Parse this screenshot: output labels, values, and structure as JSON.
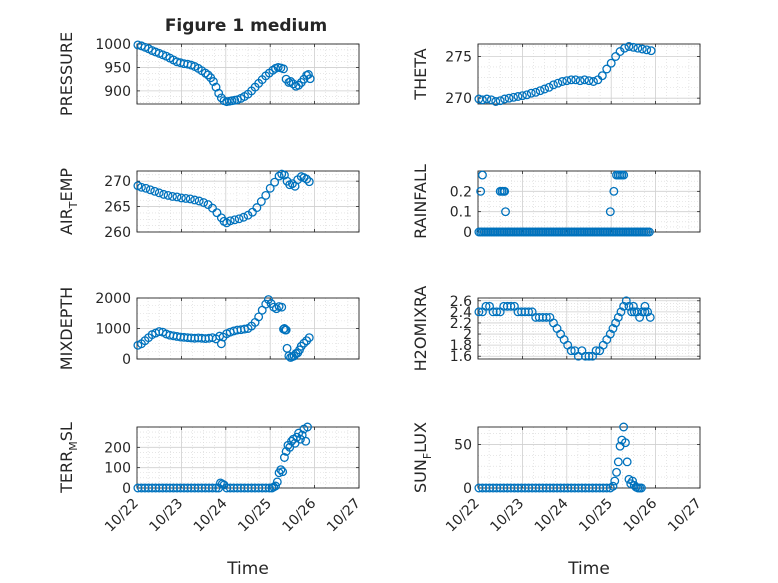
{
  "figure_title": "Figure 1 medium",
  "x_label": "Time",
  "x_tick_labels": [
    "10/22",
    "10/23",
    "10/24",
    "10/25",
    "10/26",
    "10/27"
  ],
  "marker_color": "#0072BD",
  "chart_data": [
    {
      "type": "scatter",
      "ylabel": "PRESSURE",
      "xlim": [
        0,
        5
      ],
      "ylim": [
        872,
        1000
      ],
      "yticks": [
        1000,
        950,
        900
      ],
      "grid": true,
      "x": [
        0.02,
        0.1,
        0.18,
        0.26,
        0.34,
        0.42,
        0.5,
        0.58,
        0.66,
        0.74,
        0.82,
        0.9,
        0.98,
        1.06,
        1.14,
        1.22,
        1.3,
        1.38,
        1.46,
        1.54,
        1.6,
        1.66,
        1.72,
        1.78,
        1.84,
        1.9,
        1.96,
        2.02,
        2.08,
        2.14,
        2.2,
        2.26,
        2.34,
        2.42,
        2.5,
        2.58,
        2.66,
        2.74,
        2.82,
        2.9,
        2.98,
        3.06,
        3.12,
        3.18,
        3.24,
        3.3,
        3.36,
        3.42,
        3.46,
        3.52,
        3.58,
        3.64,
        3.7,
        3.76,
        3.82,
        3.86,
        3.9
      ],
      "y": [
        998,
        996,
        993,
        990,
        986,
        983,
        980,
        977,
        974,
        970,
        966,
        962,
        960,
        958,
        957,
        955,
        952,
        948,
        943,
        938,
        934,
        928,
        920,
        908,
        895,
        885,
        879,
        877,
        878,
        879,
        880,
        881,
        884,
        888,
        893,
        900,
        908,
        916,
        924,
        932,
        938,
        944,
        948,
        950,
        949,
        947,
        925,
        918,
        920,
        915,
        910,
        912,
        918,
        925,
        933,
        935,
        926
      ],
      "series_name": "PRESSURE"
    },
    {
      "type": "scatter",
      "ylabel": "THETA",
      "xlim": [
        0,
        5
      ],
      "ylim": [
        269.3,
        276.5
      ],
      "yticks": [
        275,
        270
      ],
      "grid": true,
      "x": [
        0.02,
        0.1,
        0.2,
        0.3,
        0.4,
        0.5,
        0.6,
        0.7,
        0.8,
        0.9,
        1.0,
        1.1,
        1.2,
        1.3,
        1.4,
        1.5,
        1.6,
        1.7,
        1.8,
        1.9,
        2.0,
        2.1,
        2.2,
        2.3,
        2.4,
        2.5,
        2.6,
        2.7,
        2.8,
        2.9,
        3.0,
        3.1,
        3.2,
        3.3,
        3.4,
        3.5,
        3.6,
        3.7,
        3.8,
        3.9
      ],
      "y": [
        269.9,
        269.8,
        269.9,
        269.8,
        269.6,
        269.7,
        269.9,
        270.0,
        270.1,
        270.2,
        270.3,
        270.4,
        270.6,
        270.7,
        270.9,
        271.1,
        271.3,
        271.6,
        271.8,
        272.0,
        272.1,
        272.2,
        272.2,
        272.1,
        272.2,
        272.1,
        272.0,
        272.2,
        272.7,
        273.5,
        274.2,
        275.0,
        275.6,
        276.0,
        276.2,
        276.1,
        276.0,
        275.9,
        275.8,
        275.7
      ],
      "series_name": "THETA"
    },
    {
      "type": "scatter",
      "ylabel": "AIR_TEMP",
      "xlim": [
        0,
        5
      ],
      "ylim": [
        260,
        272
      ],
      "yticks": [
        270,
        265,
        260
      ],
      "grid": true,
      "x": [
        0.02,
        0.1,
        0.2,
        0.3,
        0.4,
        0.5,
        0.6,
        0.7,
        0.8,
        0.9,
        1.0,
        1.1,
        1.2,
        1.3,
        1.4,
        1.5,
        1.6,
        1.7,
        1.8,
        1.9,
        1.96,
        2.02,
        2.1,
        2.2,
        2.3,
        2.4,
        2.5,
        2.6,
        2.7,
        2.8,
        2.9,
        3.0,
        3.1,
        3.2,
        3.26,
        3.32,
        3.38,
        3.44,
        3.5,
        3.56,
        3.62,
        3.7,
        3.76,
        3.82,
        3.88
      ],
      "y": [
        269.1,
        268.8,
        268.6,
        268.3,
        268.0,
        267.7,
        267.4,
        267.2,
        267.0,
        266.9,
        266.7,
        266.6,
        266.5,
        266.3,
        266.1,
        265.8,
        265.4,
        264.7,
        263.8,
        262.8,
        262.1,
        261.8,
        262.2,
        262.4,
        262.6,
        262.9,
        263.3,
        263.9,
        264.8,
        266.0,
        267.2,
        268.6,
        269.8,
        271.0,
        271.4,
        271.2,
        270.0,
        269.3,
        269.5,
        269.0,
        270.3,
        270.9,
        270.7,
        270.4,
        269.9
      ],
      "series_name": "AIR_TEMP"
    },
    {
      "type": "scatter",
      "ylabel": "RAINFALL",
      "xlim": [
        0,
        5
      ],
      "ylim": [
        0,
        0.3
      ],
      "yticks": [
        0.2,
        0.1,
        0
      ],
      "grid": true,
      "x": [
        0.02,
        0.06,
        0.1,
        0.14,
        0.18,
        0.22,
        0.26,
        0.3,
        0.34,
        0.38,
        0.42,
        0.46,
        0.5,
        0.54,
        0.58,
        0.62,
        0.66,
        0.7,
        0.74,
        0.78,
        0.82,
        0.86,
        0.9,
        0.94,
        0.98,
        1.02,
        1.06,
        1.1,
        1.14,
        1.18,
        1.22,
        1.26,
        1.3,
        1.34,
        1.38,
        1.42,
        1.46,
        1.5,
        1.54,
        1.58,
        1.62,
        1.66,
        1.7,
        1.74,
        1.78,
        1.82,
        1.86,
        1.9,
        1.94,
        1.98,
        2.02,
        2.06,
        2.1,
        2.14,
        2.18,
        2.22,
        2.26,
        2.3,
        2.34,
        2.38,
        2.42,
        2.46,
        2.5,
        2.54,
        2.58,
        2.62,
        2.66,
        2.7,
        2.74,
        2.78,
        2.82,
        2.86,
        2.9,
        2.94,
        2.98,
        3.02,
        3.06,
        3.1,
        3.14,
        3.18,
        3.22,
        3.26,
        3.3,
        3.34,
        3.38,
        3.42,
        3.46,
        3.5,
        3.54,
        3.58,
        3.62,
        3.66,
        3.7,
        3.74,
        3.78,
        3.82,
        3.86,
        0.06,
        0.1,
        0.5,
        0.54,
        0.58,
        0.6,
        0.62,
        2.98,
        3.06,
        3.12,
        3.16,
        3.2,
        3.24,
        3.28
      ],
      "y": [
        0,
        0,
        0,
        0,
        0,
        0,
        0,
        0,
        0,
        0,
        0,
        0,
        0,
        0,
        0,
        0,
        0,
        0,
        0,
        0,
        0,
        0,
        0,
        0,
        0,
        0,
        0,
        0,
        0,
        0,
        0,
        0,
        0,
        0,
        0,
        0,
        0,
        0,
        0,
        0,
        0,
        0,
        0,
        0,
        0,
        0,
        0,
        0,
        0,
        0,
        0,
        0,
        0,
        0,
        0,
        0,
        0,
        0,
        0,
        0,
        0,
        0,
        0,
        0,
        0,
        0,
        0,
        0,
        0,
        0,
        0,
        0,
        0,
        0,
        0,
        0,
        0,
        0,
        0,
        0,
        0,
        0,
        0,
        0,
        0,
        0,
        0,
        0,
        0,
        0,
        0,
        0,
        0,
        0,
        0,
        0,
        0,
        0.2,
        0.28,
        0.2,
        0.2,
        0.2,
        0.2,
        0.1,
        0.1,
        0.2,
        0.28,
        0.28,
        0.28,
        0.28,
        0.28
      ],
      "series_name": "RAINFALL"
    },
    {
      "type": "scatter",
      "ylabel": "MIXDEPTH",
      "xlim": [
        0,
        5
      ],
      "ylim": [
        0,
        2000
      ],
      "yticks": [
        2000,
        1000,
        0
      ],
      "grid": true,
      "x": [
        0.02,
        0.1,
        0.18,
        0.26,
        0.34,
        0.42,
        0.5,
        0.58,
        0.66,
        0.74,
        0.82,
        0.9,
        0.98,
        1.06,
        1.14,
        1.22,
        1.3,
        1.38,
        1.46,
        1.54,
        1.62,
        1.7,
        1.78,
        1.86,
        1.9,
        1.94,
        2.02,
        2.1,
        2.18,
        2.26,
        2.34,
        2.42,
        2.5,
        2.58,
        2.66,
        2.74,
        2.82,
        2.9,
        2.96,
        3.02,
        3.08,
        3.14,
        3.2,
        3.26,
        3.3,
        3.34,
        3.38,
        3.42,
        3.46,
        3.5,
        3.54,
        3.58,
        3.62,
        3.66,
        3.7,
        3.76,
        3.82,
        3.88,
        3.32,
        3.36
      ],
      "y": [
        450,
        500,
        600,
        700,
        800,
        850,
        900,
        880,
        820,
        780,
        760,
        740,
        720,
        710,
        700,
        690,
        680,
        690,
        680,
        670,
        680,
        700,
        660,
        750,
        500,
        720,
        830,
        880,
        920,
        950,
        960,
        980,
        1000,
        1080,
        1200,
        1380,
        1600,
        1800,
        1950,
        1820,
        1700,
        1650,
        1720,
        1700,
        980,
        950,
        350,
        100,
        50,
        80,
        100,
        180,
        200,
        300,
        420,
        520,
        600,
        700,
        1000,
        950
      ],
      "series_name": "MIXDEPTH"
    },
    {
      "type": "scatter",
      "ylabel": "H2OMIXRA",
      "xlim": [
        0,
        5
      ],
      "ylim": [
        1.55,
        2.65
      ],
      "yticks": [
        2.6,
        2.4,
        2.2,
        2,
        1.8,
        1.6
      ],
      "grid": true,
      "x": [
        0.02,
        0.1,
        0.18,
        0.26,
        0.34,
        0.42,
        0.5,
        0.58,
        0.66,
        0.74,
        0.82,
        0.9,
        0.98,
        1.06,
        1.14,
        1.22,
        1.3,
        1.38,
        1.46,
        1.54,
        1.62,
        1.7,
        1.78,
        1.86,
        1.94,
        2.02,
        2.1,
        2.18,
        2.26,
        2.34,
        2.42,
        2.5,
        2.58,
        2.66,
        2.74,
        2.82,
        2.9,
        2.98,
        3.04,
        3.1,
        3.16,
        3.22,
        3.28,
        3.34,
        3.4,
        3.46,
        3.52,
        3.58,
        3.64,
        3.7,
        3.76,
        3.82,
        3.88,
        3.5,
        3.76
      ],
      "y": [
        2.4,
        2.4,
        2.5,
        2.5,
        2.4,
        2.4,
        2.4,
        2.5,
        2.5,
        2.5,
        2.5,
        2.4,
        2.4,
        2.4,
        2.4,
        2.4,
        2.3,
        2.3,
        2.3,
        2.3,
        2.3,
        2.2,
        2.1,
        2.0,
        1.9,
        1.8,
        1.7,
        1.7,
        1.6,
        1.7,
        1.6,
        1.6,
        1.6,
        1.7,
        1.7,
        1.8,
        1.9,
        2.0,
        2.1,
        2.2,
        2.3,
        2.4,
        2.5,
        2.6,
        2.5,
        2.4,
        2.4,
        2.4,
        2.3,
        2.4,
        2.5,
        2.4,
        2.3,
        2.5,
        2.4
      ],
      "series_name": "H2OMIXRA"
    },
    {
      "type": "scatter",
      "ylabel": "TERR_MSL",
      "xlim": [
        0,
        5
      ],
      "ylim": [
        0,
        300
      ],
      "yticks": [
        200,
        100,
        0
      ],
      "grid": true,
      "x": [
        0.02,
        0.1,
        0.18,
        0.26,
        0.34,
        0.42,
        0.5,
        0.58,
        0.66,
        0.74,
        0.82,
        0.9,
        0.98,
        1.06,
        1.14,
        1.22,
        1.3,
        1.38,
        1.46,
        1.54,
        1.62,
        1.7,
        1.78,
        1.84,
        1.88,
        1.92,
        1.96,
        2.02,
        2.1,
        2.18,
        2.26,
        2.34,
        2.42,
        2.5,
        2.58,
        2.66,
        2.74,
        2.82,
        2.9,
        2.98,
        3.04,
        3.08,
        3.12,
        3.16,
        3.2,
        3.24,
        3.28,
        3.32,
        3.36,
        3.4,
        3.44,
        3.48,
        3.52,
        3.56,
        3.6,
        3.64,
        3.68,
        3.72,
        3.76,
        3.8,
        3.84
      ],
      "y": [
        0,
        0,
        0,
        0,
        0,
        0,
        0,
        0,
        0,
        0,
        0,
        0,
        0,
        0,
        0,
        0,
        0,
        0,
        0,
        0,
        0,
        0,
        0,
        0,
        25,
        20,
        15,
        0,
        0,
        0,
        0,
        0,
        0,
        0,
        0,
        0,
        0,
        0,
        0,
        0,
        0,
        5,
        10,
        30,
        75,
        90,
        80,
        150,
        180,
        210,
        200,
        230,
        240,
        220,
        250,
        270,
        240,
        260,
        290,
        230,
        300
      ],
      "series_name": "TERR_MSL"
    },
    {
      "type": "scatter",
      "ylabel": "SUN_FLUX",
      "xlim": [
        0,
        5
      ],
      "ylim": [
        0,
        70
      ],
      "yticks": [
        50,
        0
      ],
      "grid": true,
      "x": [
        0.02,
        0.1,
        0.18,
        0.26,
        0.34,
        0.42,
        0.5,
        0.58,
        0.66,
        0.74,
        0.82,
        0.9,
        0.98,
        1.06,
        1.14,
        1.22,
        1.3,
        1.38,
        1.46,
        1.54,
        1.62,
        1.7,
        1.78,
        1.86,
        1.94,
        2.02,
        2.1,
        2.18,
        2.26,
        2.34,
        2.42,
        2.5,
        2.58,
        2.66,
        2.74,
        2.82,
        2.9,
        2.98,
        3.04,
        3.08,
        3.12,
        3.16,
        3.2,
        3.24,
        3.28,
        3.32,
        3.36,
        3.4,
        3.44,
        3.48,
        3.52,
        3.56,
        3.6,
        3.64,
        3.68
      ],
      "y": [
        0,
        0,
        0,
        0,
        0,
        0,
        0,
        0,
        0,
        0,
        0,
        0,
        0,
        0,
        0,
        0,
        0,
        0,
        0,
        0,
        0,
        0,
        0,
        0,
        0,
        0,
        0,
        0,
        0,
        0,
        0,
        0,
        0,
        0,
        0,
        0,
        0,
        0,
        2,
        8,
        18,
        30,
        48,
        55,
        70,
        52,
        30,
        10,
        5,
        8,
        3,
        1,
        0,
        0,
        0
      ],
      "series_name": "SUN_FLUX"
    }
  ]
}
